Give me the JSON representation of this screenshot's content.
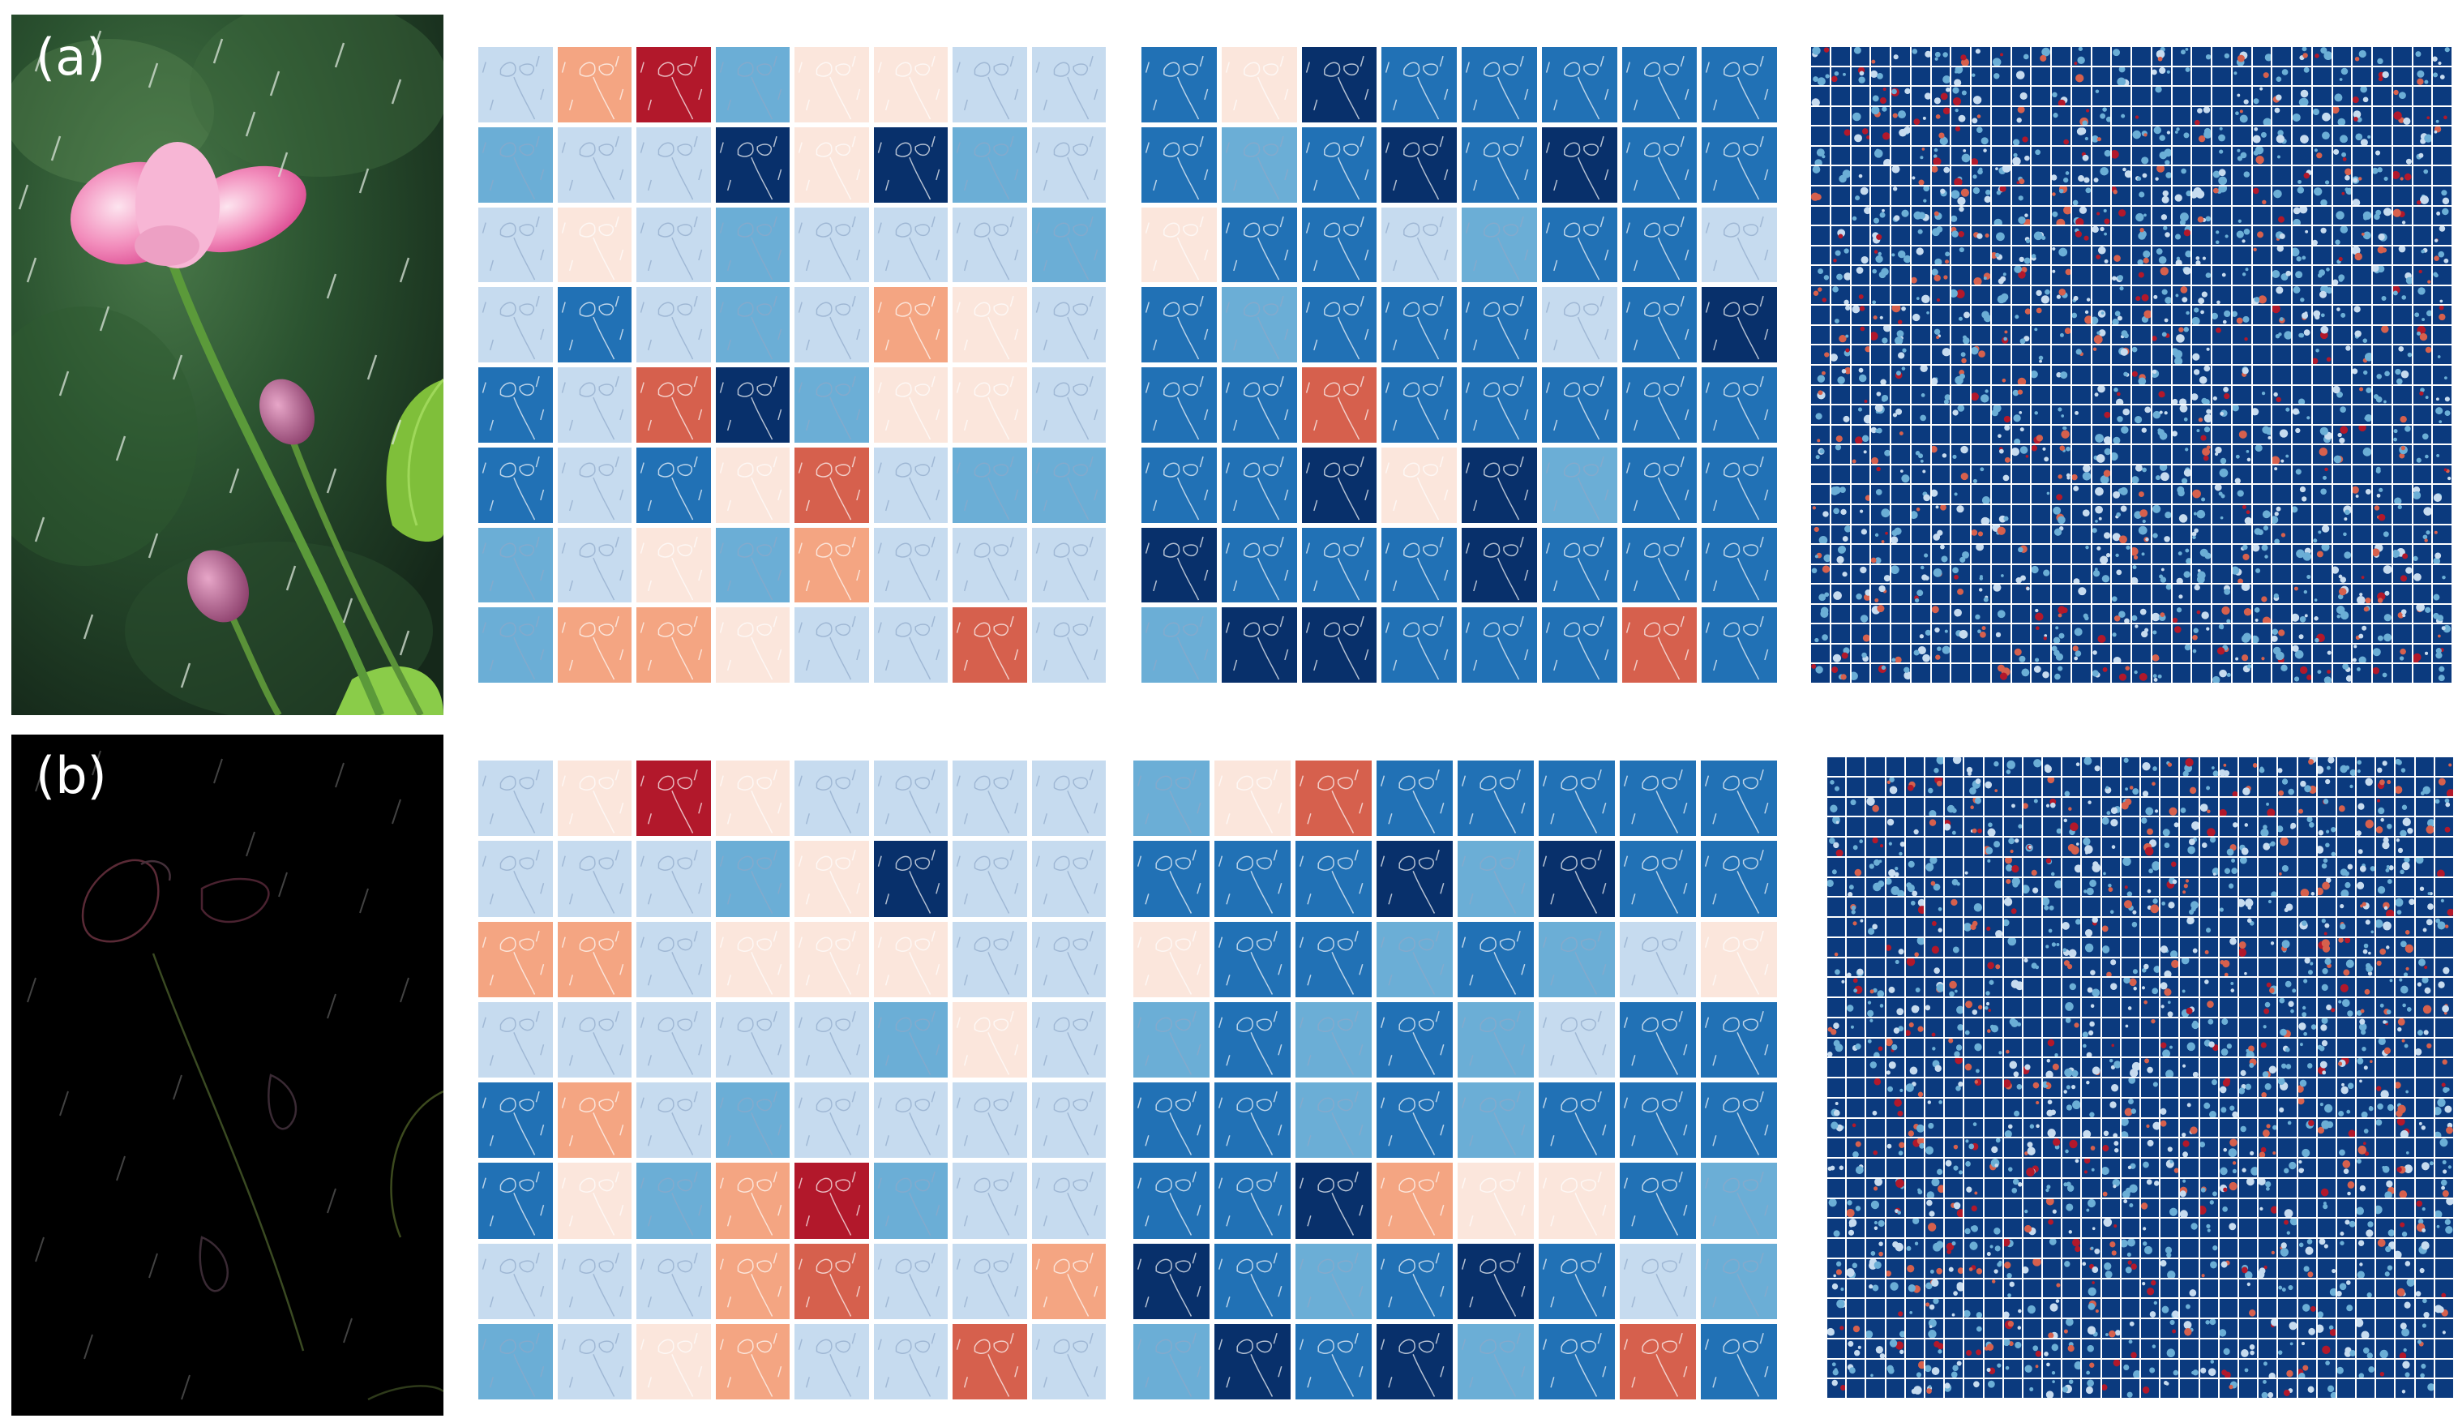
{
  "panels": [
    {
      "label": "(a)",
      "photo": "rainy-lotus-photo"
    },
    {
      "label": "(b)",
      "photo": "rain-edge-residual"
    }
  ],
  "colormaps": {
    "diverging": [
      "#08306b",
      "#2171b5",
      "#6baed6",
      "#c6dbef",
      "#fbe6dc",
      "#f4a582",
      "#d6604d",
      "#b2182b"
    ]
  },
  "feature_maps": {
    "a_col1": [
      [
        3,
        5,
        7,
        2,
        4,
        4,
        3,
        3
      ],
      [
        2,
        3,
        3,
        0,
        4,
        0,
        2,
        3
      ],
      [
        3,
        4,
        3,
        2,
        3,
        3,
        3,
        2
      ],
      [
        3,
        1,
        3,
        2,
        3,
        5,
        4,
        3
      ],
      [
        1,
        3,
        6,
        0,
        2,
        4,
        4,
        3
      ],
      [
        1,
        3,
        1,
        4,
        6,
        3,
        2,
        2
      ],
      [
        2,
        3,
        4,
        2,
        5,
        3,
        3,
        3
      ],
      [
        2,
        5,
        5,
        4,
        3,
        3,
        6,
        3
      ]
    ],
    "a_col2": [
      [
        1,
        4,
        0,
        1,
        1,
        1,
        1,
        1
      ],
      [
        1,
        2,
        1,
        0,
        1,
        0,
        1,
        1
      ],
      [
        4,
        1,
        1,
        3,
        2,
        1,
        1,
        3
      ],
      [
        1,
        2,
        1,
        1,
        1,
        3,
        1,
        0
      ],
      [
        1,
        1,
        6,
        1,
        1,
        1,
        1,
        1
      ],
      [
        1,
        1,
        0,
        4,
        0,
        2,
        1,
        1
      ],
      [
        0,
        1,
        1,
        1,
        0,
        1,
        1,
        1
      ],
      [
        2,
        0,
        0,
        1,
        1,
        1,
        6,
        1
      ]
    ],
    "a_col3_dominant": "#0b3a7e",
    "b_col1": [
      [
        3,
        4,
        7,
        4,
        3,
        3,
        3,
        3
      ],
      [
        3,
        3,
        3,
        2,
        4,
        0,
        3,
        3
      ],
      [
        5,
        5,
        3,
        4,
        4,
        4,
        3,
        3
      ],
      [
        3,
        3,
        3,
        3,
        3,
        2,
        4,
        3
      ],
      [
        1,
        5,
        3,
        2,
        3,
        3,
        3,
        3
      ],
      [
        1,
        4,
        2,
        5,
        7,
        2,
        3,
        3
      ],
      [
        3,
        3,
        3,
        5,
        6,
        3,
        3,
        5
      ],
      [
        2,
        3,
        4,
        5,
        3,
        3,
        6,
        3
      ]
    ],
    "b_col2": [
      [
        2,
        4,
        6,
        1,
        1,
        1,
        1,
        1
      ],
      [
        1,
        1,
        1,
        0,
        2,
        0,
        1,
        1
      ],
      [
        4,
        1,
        1,
        2,
        1,
        2,
        3,
        4
      ],
      [
        2,
        1,
        2,
        1,
        2,
        3,
        1,
        1
      ],
      [
        1,
        1,
        2,
        1,
        2,
        1,
        1,
        1
      ],
      [
        1,
        1,
        0,
        5,
        4,
        4,
        1,
        2
      ],
      [
        0,
        1,
        2,
        1,
        0,
        1,
        3,
        2
      ],
      [
        2,
        0,
        1,
        0,
        2,
        1,
        6,
        1
      ]
    ],
    "b_col3_dominant": "#0b3a7e"
  }
}
